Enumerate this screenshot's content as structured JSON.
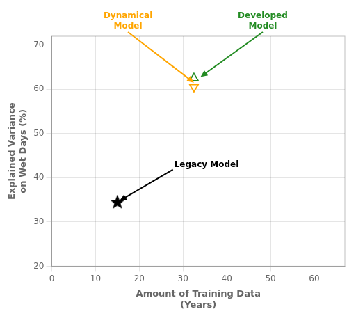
{
  "chart_data": {
    "type": "scatter",
    "xlabel": "Amount of Training Data\n(Years)",
    "ylabel": "Explained Variance\non Wet Days (%)",
    "xlim": [
      0,
      67
    ],
    "ylim": [
      20,
      72
    ],
    "xticks": [
      0,
      10,
      20,
      30,
      40,
      50,
      60
    ],
    "yticks": [
      20,
      30,
      40,
      50,
      60,
      70
    ],
    "grid": true,
    "series": [
      {
        "x": [
          15
        ],
        "values": [
          34.5
        ],
        "color": "black",
        "marker": "star"
      },
      {
        "x": [
          32.5
        ],
        "values": [
          62.5
        ],
        "color": "#228B22",
        "marker": "triangle_up_open"
      },
      {
        "x": [
          32.5
        ],
        "values": [
          60.5
        ],
        "color": "orange",
        "marker": "triangle_down_open"
      }
    ],
    "annotations": [
      {
        "text": "Dynamical\nModel",
        "xy": [
          32.5,
          61.5
        ],
        "color": "orange"
      },
      {
        "text": "Developed\nModel",
        "xy": [
          34,
          62.8
        ],
        "color": "#228B22"
      },
      {
        "text": "Legacy Model",
        "xy": [
          15.5,
          34.8
        ],
        "color": "black"
      }
    ]
  }
}
